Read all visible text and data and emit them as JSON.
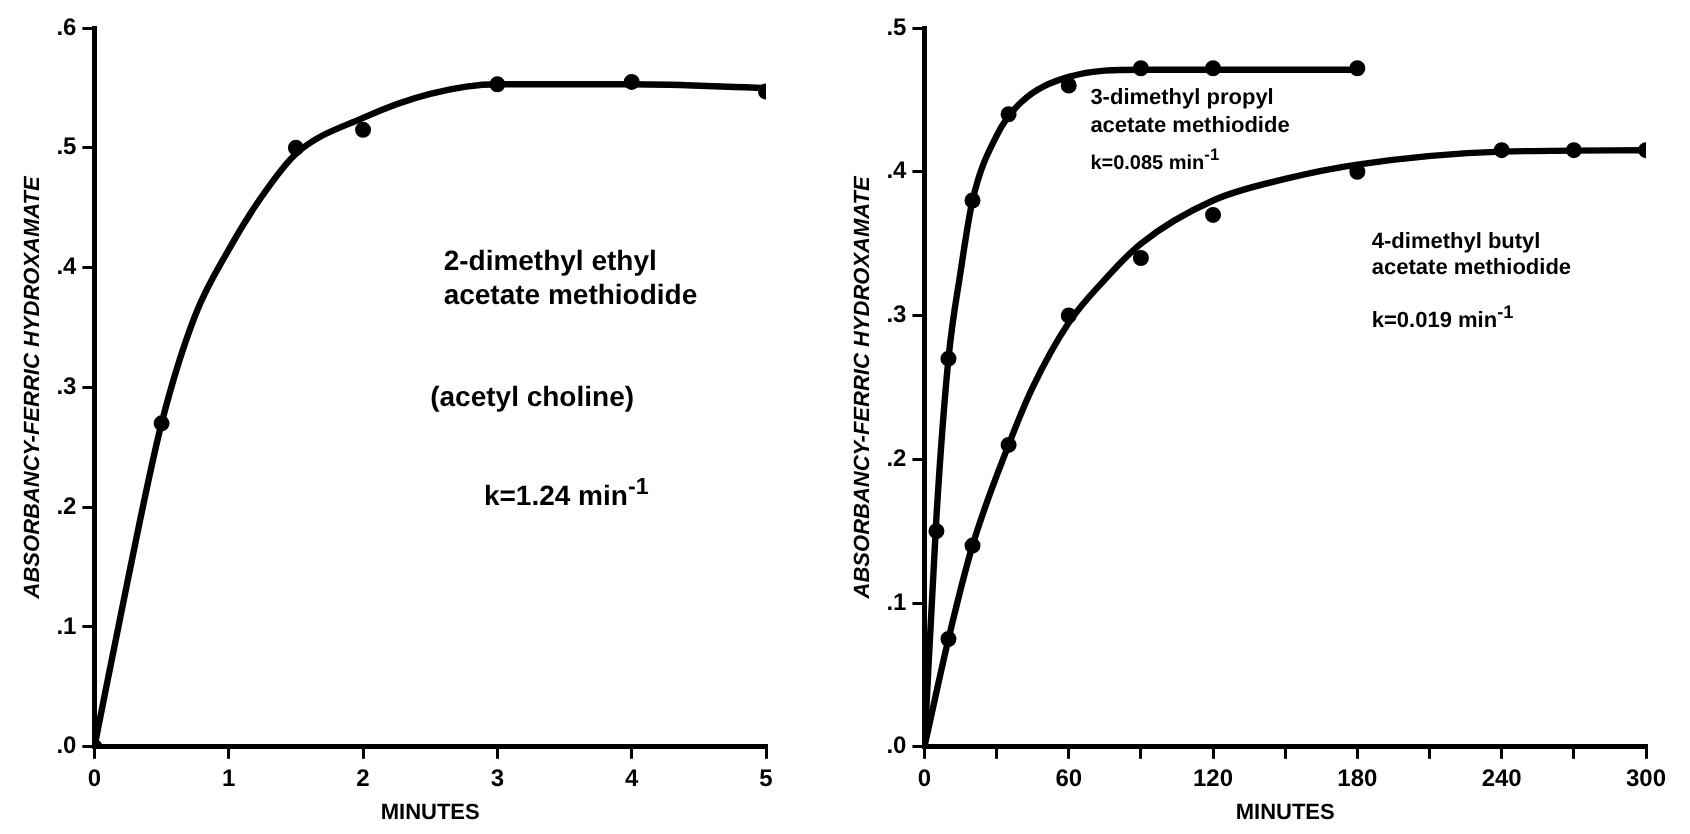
{
  "chart_data": [
    {
      "type": "scatter",
      "xlabel": "MINUTES",
      "ylabel": "ABSORBANCY-FERRIC HYDROXAMATE",
      "xlim": [
        0,
        5
      ],
      "xticks": [
        0,
        1,
        2,
        3,
        4,
        5
      ],
      "ylim": [
        0,
        0.6
      ],
      "yticks": [
        {
          "value": 0,
          "label": ".0"
        },
        {
          "value": 0.1,
          "label": ".1"
        },
        {
          "value": 0.2,
          "label": ".2"
        },
        {
          "value": 0.3,
          "label": ".3"
        },
        {
          "value": 0.4,
          "label": ".4"
        },
        {
          "value": 0.5,
          "label": ".5"
        },
        {
          "value": 0.6,
          "label": ".6"
        }
      ],
      "grid": false,
      "legend": false,
      "series": [
        {
          "type": "scatter",
          "color": "#000000",
          "marker": "circle",
          "x": [
            0,
            0.5,
            1.5,
            2,
            3,
            4,
            5
          ],
          "values": [
            0,
            0.27,
            0.5,
            0.515,
            0.553,
            0.555,
            0.547
          ]
        },
        {
          "type": "line",
          "color": "#000000",
          "marker": "none",
          "line_style": "solid",
          "x": [
            0,
            0.25,
            0.5,
            0.75,
            1,
            1.25,
            1.5,
            2,
            2.5,
            3,
            4,
            5
          ],
          "values": [
            0,
            0.14,
            0.27,
            0.36,
            0.415,
            0.46,
            0.495,
            0.525,
            0.545,
            0.553,
            0.553,
            0.55
          ]
        }
      ],
      "annotations": [
        "2-dimethyl ethyl acetate methiodide",
        "(acetyl choline)",
        "k=1.24 min$^{-1}$"
      ]
    },
    {
      "type": "scatter",
      "xlabel": "MINUTES",
      "ylabel": "ABSORBANCY-FERRIC HYDROXAMATE",
      "xlim": [
        0,
        300
      ],
      "xticks": [
        0,
        {
          "value": 30,
          "label": null
        },
        60,
        {
          "value": 90,
          "label": null
        },
        120,
        {
          "value": 150,
          "label": null
        },
        180,
        {
          "value": 210,
          "label": null
        },
        240,
        {
          "value": 270,
          "label": null
        },
        300
      ],
      "ylim": [
        0,
        0.5
      ],
      "yticks": [
        {
          "value": 0,
          "label": ".0"
        },
        {
          "value": 0.1,
          "label": ".1"
        },
        {
          "value": 0.2,
          "label": ".2"
        },
        {
          "value": 0.3,
          "label": ".3"
        },
        {
          "value": 0.4,
          "label": ".4"
        },
        {
          "value": 0.5,
          "label": ".5"
        }
      ],
      "grid": false,
      "legend": false,
      "series": [
        {
          "type": "scatter",
          "color": "#000000",
          "marker": "circle",
          "x": [
            5,
            10,
            20,
            35,
            60,
            90,
            120,
            180
          ],
          "values": [
            0.15,
            0.27,
            0.38,
            0.44,
            0.46,
            0.472,
            0.472,
            0.472
          ]
        },
        {
          "type": "line",
          "color": "#000000",
          "marker": "none",
          "line_style": "solid",
          "x": [
            0,
            5,
            10,
            15,
            20,
            30,
            40,
            60,
            90,
            180
          ],
          "values": [
            0,
            0.16,
            0.27,
            0.33,
            0.38,
            0.425,
            0.448,
            0.466,
            0.471,
            0.471
          ]
        },
        {
          "type": "scatter",
          "color": "#000000",
          "marker": "circle",
          "x": [
            10,
            20,
            35,
            60,
            90,
            120,
            180,
            240,
            270,
            300
          ],
          "values": [
            0.075,
            0.14,
            0.21,
            0.3,
            0.34,
            0.37,
            0.4,
            0.415,
            0.415,
            0.415
          ]
        },
        {
          "type": "line",
          "color": "#000000",
          "marker": "none",
          "line_style": "solid",
          "x": [
            0,
            10,
            20,
            35,
            45,
            60,
            75,
            90,
            120,
            150,
            180,
            240,
            300
          ],
          "values": [
            0,
            0.075,
            0.14,
            0.21,
            0.25,
            0.295,
            0.325,
            0.35,
            0.38,
            0.395,
            0.405,
            0.414,
            0.415
          ]
        }
      ],
      "annotations": [
        "3-dimethyl propyl acetate methiodide",
        "k=0.085 min$^{-1}$",
        "4-dimethyl butyl acetate methiodide",
        "k=0.019 min$^{-1}$"
      ]
    }
  ]
}
